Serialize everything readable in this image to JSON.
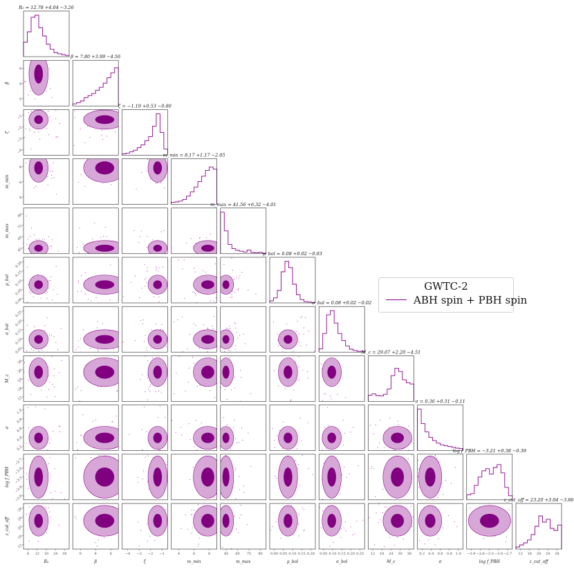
{
  "chart_data": {
    "type": "corner",
    "colors": {
      "outer_contour": "#d7a8d7",
      "inner_contour": "#800080",
      "line": "#8b008b",
      "scatter": "#a020a0"
    },
    "legend": {
      "title": "GWTC-2",
      "entries": [
        "ABH spin + PBH spin"
      ],
      "placement": "upper-right"
    },
    "parameters": [
      {
        "label": "R₀",
        "title": "R₀ = 12.78",
        "title_err": "+4.04 −3.26",
        "range": [
          0,
          32
        ],
        "ticks": [
          "6",
          "12",
          "18",
          "24",
          "30"
        ],
        "hist": [
          0.35,
          0.6,
          0.95,
          1.0,
          0.7,
          0.5,
          0.3,
          0.18,
          0.1,
          0.07,
          0.05,
          0.03
        ],
        "mean_frac": 0.33,
        "sd_frac": 0.1
      },
      {
        "label": "β",
        "title": "β = 7.80",
        "title_err": "+3.99 −4.56",
        "range": [
          -3.5,
          12
        ],
        "ticks": [
          "0",
          "4",
          "8"
        ],
        "hist": [
          0.05,
          0.08,
          0.12,
          0.2,
          0.25,
          0.3,
          0.38,
          0.45,
          0.55,
          0.68,
          0.8,
          0.92
        ],
        "mean_frac": 0.7,
        "sd_frac": 0.22
      },
      {
        "label": "ζ",
        "title": "ζ = −1.19",
        "title_err": "+0.53 −0.80",
        "range": [
          -5.2,
          0.6
        ],
        "ticks": [
          "−4",
          "−3",
          "−2",
          "−1"
        ],
        "hist": [
          0.03,
          0.05,
          0.08,
          0.12,
          0.18,
          0.25,
          0.35,
          0.45,
          0.7,
          1.0,
          0.55,
          0.15
        ],
        "mean_frac": 0.78,
        "sd_frac": 0.1
      },
      {
        "label": "m_min",
        "title": "m_min = 8.17",
        "title_err": "+1.17 −2.05",
        "range": [
          2,
          10.5
        ],
        "ticks": [
          "4",
          "6",
          "8"
        ],
        "hist": [
          0.05,
          0.06,
          0.08,
          0.12,
          0.2,
          0.3,
          0.42,
          0.55,
          0.68,
          0.82,
          0.9,
          0.85
        ],
        "mean_frac": 0.8,
        "sd_frac": 0.15
      },
      {
        "label": "m_max",
        "title": "m_max = 41.56",
        "title_err": "+6.32 −4.01",
        "range": [
          35,
          95
        ],
        "ticks": [
          "45",
          "60",
          "75",
          "90"
        ],
        "hist": [
          1.0,
          0.55,
          0.22,
          0.12,
          0.08,
          0.06,
          0.04,
          0.09,
          0.03,
          0.02,
          0.03,
          0.01
        ],
        "mean_frac": 0.12,
        "sd_frac": 0.08
      },
      {
        "label": "μ_bol",
        "title": "μ_bol = 0.08",
        "title_err": "+0.02 −0.03",
        "range": [
          -0.02,
          0.21
        ],
        "ticks": [
          "0.00",
          "0.05",
          "0.10",
          "0.15",
          "0.20"
        ],
        "hist": [
          0.05,
          0.12,
          0.3,
          0.75,
          1.0,
          0.85,
          0.45,
          0.2,
          0.08,
          0.03,
          0.02,
          0.01
        ],
        "mean_frac": 0.4,
        "sd_frac": 0.1
      },
      {
        "label": "σ_bol",
        "title": "σ_bol = 0.08",
        "title_err": "+0.02 −0.02",
        "range": [
          0.0,
          0.32
        ],
        "ticks": [
          "0.05",
          "0.10",
          "0.15",
          "0.20",
          "0.25"
        ],
        "hist": [
          0.08,
          0.45,
          0.9,
          1.0,
          0.7,
          0.45,
          0.28,
          0.15,
          0.07,
          0.04,
          0.02,
          0.02
        ],
        "mean_frac": 0.28,
        "sd_frac": 0.1
      },
      {
        "label": "M_c",
        "title": "M_c = 29.07",
        "title_err": "+2.20 −4.51",
        "range": [
          10,
          38
        ],
        "ticks": [
          "12",
          "18",
          "24",
          "30",
          "36"
        ],
        "hist": [
          0.15,
          0.18,
          0.14,
          0.13,
          0.17,
          0.3,
          0.62,
          0.8,
          0.72,
          0.52,
          0.45,
          0.42
        ],
        "mean_frac": 0.64,
        "sd_frac": 0.15
      },
      {
        "label": "σ",
        "title": "σ = 0.36",
        "title_err": "+0.31 −0.11",
        "range": [
          0.05,
          1.1
        ],
        "ticks": [
          "0.2",
          "0.4",
          "0.6",
          "0.8",
          "1.0"
        ],
        "hist": [
          1.0,
          0.65,
          0.45,
          0.32,
          0.24,
          0.18,
          0.14,
          0.12,
          0.1,
          0.08,
          0.06,
          0.05
        ],
        "mean_frac": 0.28,
        "sd_frac": 0.12
      },
      {
        "label": "log f_PBH",
        "title": "log f_PBH = −3.21",
        "title_err": "+0.38 −0.39",
        "range": [
          -4.3,
          -2.3
        ],
        "ticks": [
          "−3.9",
          "−3.6",
          "−3.3",
          "−3.0",
          "−2.7"
        ],
        "hist": [
          0.12,
          0.15,
          0.35,
          0.55,
          0.7,
          0.75,
          0.62,
          0.78,
          0.85,
          0.65,
          0.3,
          0.1
        ],
        "mean_frac": 0.5,
        "sd_frac": 0.22
      },
      {
        "label": "z_cut_off",
        "title": "z_cut_off = 23.20",
        "title_err": "+3.04 −3.86",
        "range": [
          10,
          30
        ],
        "ticks": [
          "12",
          "16",
          "20",
          "24",
          "28"
        ],
        "hist": [
          0.05,
          0.1,
          0.15,
          0.22,
          0.35,
          0.55,
          0.8,
          0.65,
          0.72,
          0.5,
          0.45,
          0.58
        ],
        "mean_frac": 0.62,
        "sd_frac": 0.16
      }
    ]
  }
}
